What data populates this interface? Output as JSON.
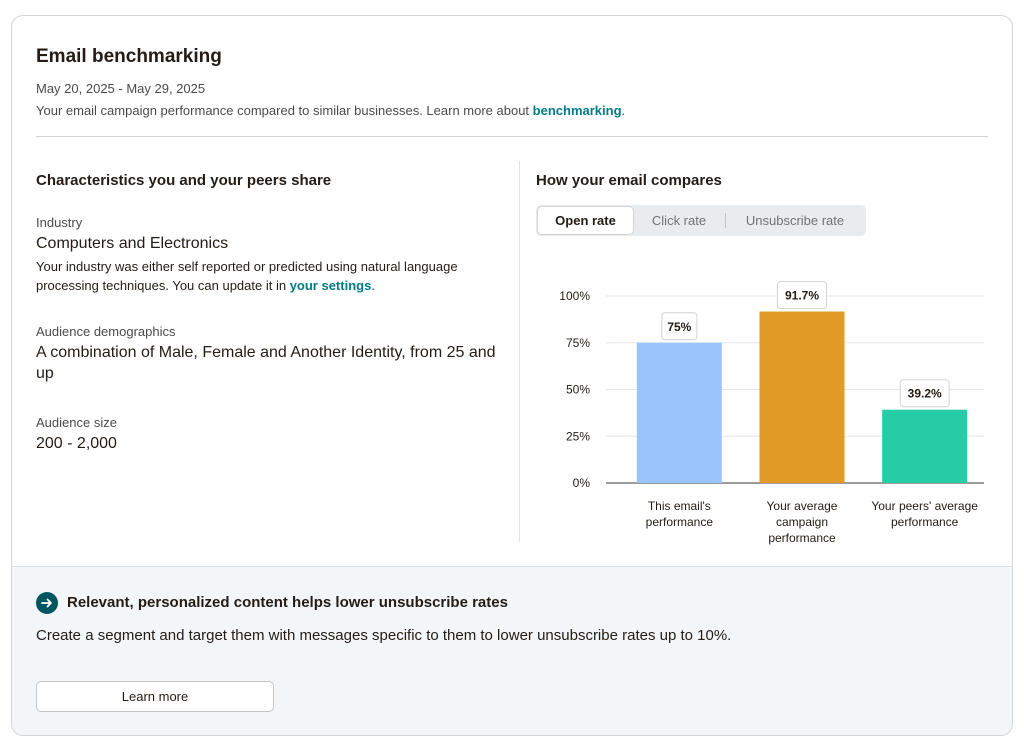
{
  "header": {
    "title": "Email benchmarking",
    "date_range": "May 20, 2025 - May 29, 2025",
    "description_prefix": "Your email campaign performance compared to similar businesses. Learn more about ",
    "description_link": "benchmarking",
    "description_suffix": "."
  },
  "characteristics": {
    "title": "Characteristics you and your peers share",
    "industry": {
      "label": "Industry",
      "value": "Computers and Electronics",
      "note_prefix": "Your industry was either self reported or predicted using natural language processing techniques. You can update it in ",
      "note_link": "your settings",
      "note_suffix": "."
    },
    "demographics": {
      "label": "Audience demographics",
      "value": "A combination of Male, Female and Another Identity, from 25 and up"
    },
    "size": {
      "label": "Audience size",
      "value": "200 - 2,000"
    }
  },
  "compare": {
    "title": "How your email compares",
    "tabs": [
      {
        "label": "Open rate",
        "active": true
      },
      {
        "label": "Click rate",
        "active": false
      },
      {
        "label": "Unsubscribe rate",
        "active": false
      }
    ]
  },
  "chart_data": {
    "type": "bar",
    "categories": [
      [
        "This email's",
        "performance"
      ],
      [
        "Your average",
        "campaign",
        "performance"
      ],
      [
        "Your peers' average",
        "performance"
      ]
    ],
    "values": [
      75,
      91.7,
      39.2
    ],
    "value_labels": [
      "75%",
      "91.7%",
      "39.2%"
    ],
    "colors": [
      "#9ac5fb",
      "#e39b28",
      "#25cca5"
    ],
    "yticks": [
      "0%",
      "25%",
      "50%",
      "75%",
      "100%"
    ],
    "ylim": [
      0,
      100
    ],
    "grid": true
  },
  "tip": {
    "title": "Relevant, personalized content helps lower unsubscribe rates",
    "body": "Create a segment and target them with messages specific to them to lower unsubscribe rates up to 10%.",
    "button_label": "Learn more"
  }
}
